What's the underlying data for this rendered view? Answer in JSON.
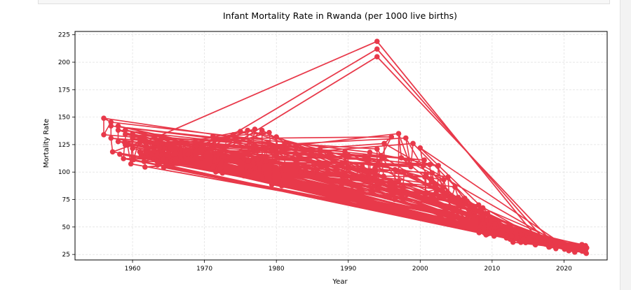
{
  "chart_data": {
    "type": "line",
    "title": "Infant Mortality Rate in Rwanda (per 1000 live births)",
    "xlabel": "Year",
    "ylabel": "Mortality Rate",
    "xlim": [
      1952,
      2026
    ],
    "ylim": [
      20,
      228
    ],
    "xticks": [
      1960,
      1970,
      1980,
      1990,
      2000,
      2010,
      2020
    ],
    "yticks": [
      25,
      50,
      75,
      100,
      125,
      150,
      175,
      200,
      225
    ],
    "grid": true,
    "color": "#e8394a",
    "series_groups": {
      "g1": {
        "years": [
          1956,
          1957,
          1958,
          1959,
          1960,
          1961,
          1962,
          1963,
          1964,
          1965,
          1966,
          1967
        ],
        "start": 149,
        "end": 110
      },
      "g2": {
        "years": [
          1957,
          1958,
          1959,
          1960,
          1961,
          1962,
          1963,
          1964,
          1965,
          1966
        ],
        "start": 142,
        "end": 108
      },
      "g3": {
        "years": [
          1956,
          1957,
          1958,
          1959,
          1960,
          1961,
          1962,
          1963,
          1964,
          1965
        ],
        "start": 134,
        "end": 106
      },
      "g4": {
        "years": [
          1974,
          1975,
          1976,
          1977,
          1978,
          1979,
          1980
        ],
        "values": [
          134,
          137,
          138,
          139,
          138,
          136,
          132
        ]
      },
      "g5": {
        "years": [
          1993,
          1994,
          1995,
          1996,
          1997,
          1998,
          1999,
          2000
        ],
        "values": [
          118,
          121,
          126,
          132,
          135,
          131,
          126,
          122
        ]
      },
      "g6": {
        "years": [
          2012,
          2014,
          2016,
          2018,
          2020,
          2022,
          2023
        ],
        "values": [
          40,
          36,
          34,
          32,
          31,
          30,
          29
        ]
      },
      "peaks": [
        {
          "year": 1994,
          "value": 219
        },
        {
          "year": 1994,
          "value": 212
        },
        {
          "year": 1994,
          "value": 205
        }
      ]
    }
  }
}
